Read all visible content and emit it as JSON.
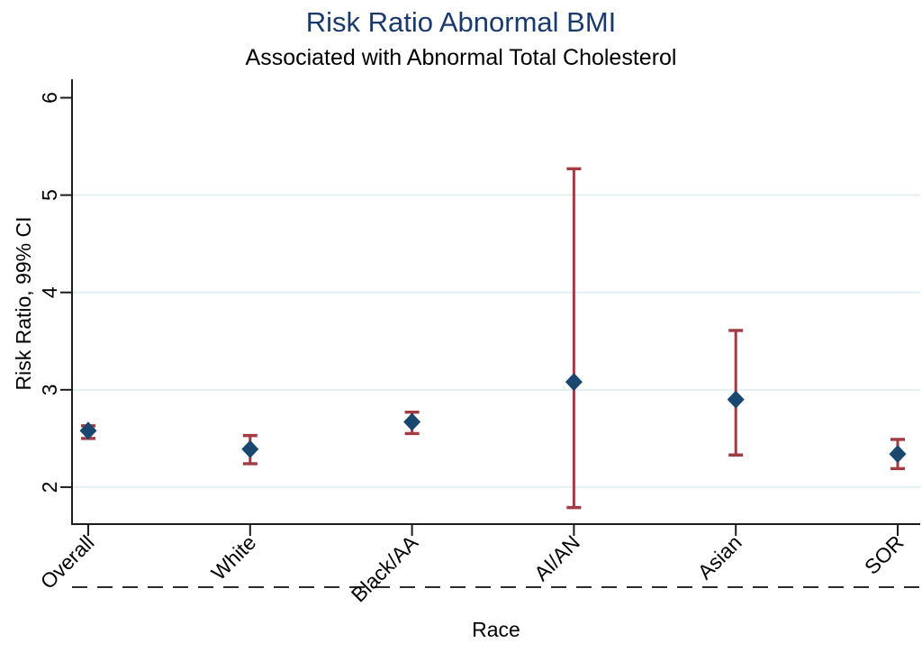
{
  "chart_data": {
    "type": "scatter",
    "subtype": "forest-plot-error-bars",
    "title": "Risk Ratio Abnormal BMI",
    "subtitle": "Associated with Abnormal Total Cholesterol",
    "xlabel": "Race",
    "ylabel": "Risk Ratio, 99% CI",
    "categories": [
      "Overall",
      "White",
      "Black/AA",
      "AI/AN",
      "Asian",
      "SOR"
    ],
    "series": [
      {
        "name": "Risk Ratio (99% CI)",
        "estimates": [
          2.58,
          2.39,
          2.67,
          3.08,
          2.9,
          2.34
        ],
        "ci_lower": [
          2.5,
          2.24,
          2.55,
          1.79,
          2.33,
          2.19
        ],
        "ci_upper": [
          2.63,
          2.53,
          2.77,
          5.27,
          3.61,
          2.49
        ]
      }
    ],
    "y_ticks": [
      2,
      3,
      4,
      5,
      6
    ],
    "gridline_values": [
      2,
      3,
      4,
      5
    ],
    "ylim": [
      1.62,
      6.19
    ],
    "grid": true,
    "legend": "none",
    "x_tick_angle": -45,
    "y_tick_angle": -90,
    "dashed_line_below_axis": true,
    "marker_shape": "diamond",
    "colors": {
      "marker": "#1a476f",
      "error_bar": "#a33b43",
      "gridline": "#e3eff1",
      "axis": "#1c1c1c",
      "title": "#1a3a6b",
      "text": "#000000",
      "dashed_line": "#2b2b2b"
    }
  }
}
